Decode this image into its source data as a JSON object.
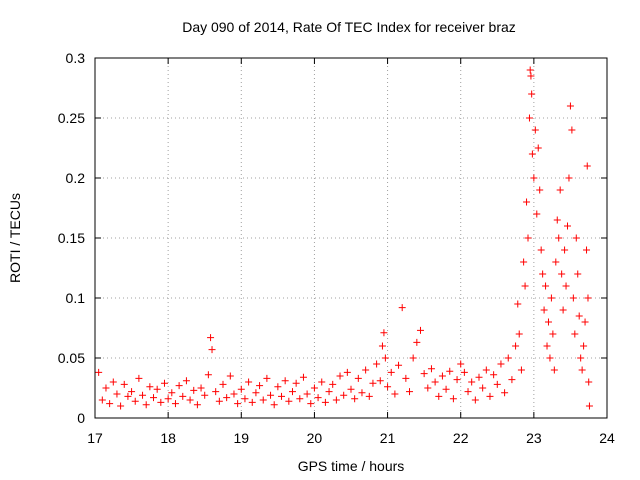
{
  "chart_data": {
    "type": "scatter",
    "title": "Day 090 of 2014, Rate Of TEC Index for receiver braz",
    "xlabel": "GPS time / hours",
    "ylabel": "ROTI / TECUs",
    "xlim": [
      17,
      24
    ],
    "ylim": [
      0,
      0.3
    ],
    "x_ticks": [
      "17",
      "18",
      "19",
      "20",
      "21",
      "22",
      "23",
      "24"
    ],
    "y_ticks": [
      "0",
      "0.05",
      "0.1",
      "0.15",
      "0.2",
      "0.25",
      "0.3"
    ],
    "grid": true,
    "marker": "+",
    "color": "#ff0000",
    "series": [
      {
        "name": "ROTI",
        "points": [
          [
            17.05,
            0.038
          ],
          [
            17.1,
            0.015
          ],
          [
            17.15,
            0.025
          ],
          [
            17.2,
            0.012
          ],
          [
            17.25,
            0.03
          ],
          [
            17.3,
            0.02
          ],
          [
            17.35,
            0.01
          ],
          [
            17.4,
            0.028
          ],
          [
            17.45,
            0.018
          ],
          [
            17.5,
            0.022
          ],
          [
            17.55,
            0.014
          ],
          [
            17.6,
            0.033
          ],
          [
            17.65,
            0.019
          ],
          [
            17.7,
            0.011
          ],
          [
            17.75,
            0.026
          ],
          [
            17.8,
            0.017
          ],
          [
            17.85,
            0.024
          ],
          [
            17.9,
            0.013
          ],
          [
            17.95,
            0.029
          ],
          [
            18.0,
            0.016
          ],
          [
            18.05,
            0.021
          ],
          [
            18.1,
            0.012
          ],
          [
            18.15,
            0.027
          ],
          [
            18.2,
            0.018
          ],
          [
            18.25,
            0.031
          ],
          [
            18.3,
            0.015
          ],
          [
            18.35,
            0.023
          ],
          [
            18.4,
            0.011
          ],
          [
            18.45,
            0.025
          ],
          [
            18.5,
            0.019
          ],
          [
            18.55,
            0.036
          ],
          [
            18.58,
            0.067
          ],
          [
            18.6,
            0.057
          ],
          [
            18.65,
            0.022
          ],
          [
            18.7,
            0.014
          ],
          [
            18.75,
            0.028
          ],
          [
            18.8,
            0.017
          ],
          [
            18.85,
            0.035
          ],
          [
            18.9,
            0.02
          ],
          [
            18.95,
            0.012
          ],
          [
            19.0,
            0.024
          ],
          [
            19.05,
            0.016
          ],
          [
            19.1,
            0.03
          ],
          [
            19.15,
            0.013
          ],
          [
            19.2,
            0.021
          ],
          [
            19.25,
            0.027
          ],
          [
            19.3,
            0.015
          ],
          [
            19.35,
            0.033
          ],
          [
            19.4,
            0.019
          ],
          [
            19.45,
            0.011
          ],
          [
            19.5,
            0.026
          ],
          [
            19.55,
            0.018
          ],
          [
            19.6,
            0.031
          ],
          [
            19.65,
            0.014
          ],
          [
            19.7,
            0.022
          ],
          [
            19.75,
            0.029
          ],
          [
            19.8,
            0.016
          ],
          [
            19.85,
            0.034
          ],
          [
            19.9,
            0.02
          ],
          [
            19.95,
            0.012
          ],
          [
            20.0,
            0.025
          ],
          [
            20.05,
            0.017
          ],
          [
            20.1,
            0.03
          ],
          [
            20.15,
            0.013
          ],
          [
            20.2,
            0.022
          ],
          [
            20.25,
            0.028
          ],
          [
            20.3,
            0.015
          ],
          [
            20.35,
            0.035
          ],
          [
            20.4,
            0.019
          ],
          [
            20.45,
            0.038
          ],
          [
            20.5,
            0.024
          ],
          [
            20.55,
            0.016
          ],
          [
            20.6,
            0.033
          ],
          [
            20.65,
            0.021
          ],
          [
            20.7,
            0.04
          ],
          [
            20.75,
            0.018
          ],
          [
            20.8,
            0.029
          ],
          [
            20.85,
            0.045
          ],
          [
            20.9,
            0.031
          ],
          [
            20.93,
            0.06
          ],
          [
            20.95,
            0.071
          ],
          [
            20.97,
            0.05
          ],
          [
            21.0,
            0.026
          ],
          [
            21.05,
            0.038
          ],
          [
            21.1,
            0.02
          ],
          [
            21.15,
            0.044
          ],
          [
            21.2,
            0.092
          ],
          [
            21.25,
            0.033
          ],
          [
            21.3,
            0.022
          ],
          [
            21.35,
            0.05
          ],
          [
            21.4,
            0.063
          ],
          [
            21.45,
            0.073
          ],
          [
            21.5,
            0.037
          ],
          [
            21.55,
            0.025
          ],
          [
            21.6,
            0.041
          ],
          [
            21.65,
            0.03
          ],
          [
            21.7,
            0.018
          ],
          [
            21.75,
            0.035
          ],
          [
            21.8,
            0.024
          ],
          [
            21.85,
            0.039
          ],
          [
            21.9,
            0.016
          ],
          [
            21.95,
            0.032
          ],
          [
            22.0,
            0.045
          ],
          [
            22.05,
            0.038
          ],
          [
            22.1,
            0.022
          ],
          [
            22.15,
            0.03
          ],
          [
            22.2,
            0.015
          ],
          [
            22.25,
            0.034
          ],
          [
            22.3,
            0.025
          ],
          [
            22.35,
            0.04
          ],
          [
            22.4,
            0.018
          ],
          [
            22.45,
            0.036
          ],
          [
            22.5,
            0.028
          ],
          [
            22.55,
            0.045
          ],
          [
            22.6,
            0.021
          ],
          [
            22.65,
            0.05
          ],
          [
            22.7,
            0.032
          ],
          [
            22.75,
            0.06
          ],
          [
            22.78,
            0.095
          ],
          [
            22.8,
            0.07
          ],
          [
            22.83,
            0.04
          ],
          [
            22.86,
            0.13
          ],
          [
            22.88,
            0.11
          ],
          [
            22.9,
            0.18
          ],
          [
            22.92,
            0.15
          ],
          [
            22.94,
            0.25
          ],
          [
            22.95,
            0.29
          ],
          [
            22.96,
            0.285
          ],
          [
            22.97,
            0.27
          ],
          [
            22.98,
            0.22
          ],
          [
            23.0,
            0.2
          ],
          [
            23.02,
            0.24
          ],
          [
            23.04,
            0.17
          ],
          [
            23.06,
            0.225
          ],
          [
            23.08,
            0.19
          ],
          [
            23.1,
            0.14
          ],
          [
            23.12,
            0.12
          ],
          [
            23.14,
            0.09
          ],
          [
            23.16,
            0.11
          ],
          [
            23.18,
            0.06
          ],
          [
            23.2,
            0.08
          ],
          [
            23.22,
            0.05
          ],
          [
            23.24,
            0.1
          ],
          [
            23.26,
            0.07
          ],
          [
            23.28,
            0.04
          ],
          [
            23.3,
            0.13
          ],
          [
            23.32,
            0.165
          ],
          [
            23.34,
            0.15
          ],
          [
            23.36,
            0.19
          ],
          [
            23.38,
            0.12
          ],
          [
            23.4,
            0.09
          ],
          [
            23.42,
            0.14
          ],
          [
            23.44,
            0.11
          ],
          [
            23.46,
            0.16
          ],
          [
            23.48,
            0.2
          ],
          [
            23.5,
            0.26
          ],
          [
            23.52,
            0.24
          ],
          [
            23.54,
            0.1
          ],
          [
            23.56,
            0.07
          ],
          [
            23.58,
            0.15
          ],
          [
            23.6,
            0.12
          ],
          [
            23.62,
            0.085
          ],
          [
            23.64,
            0.05
          ],
          [
            23.66,
            0.04
          ],
          [
            23.68,
            0.06
          ],
          [
            23.7,
            0.08
          ],
          [
            23.72,
            0.14
          ],
          [
            23.73,
            0.21
          ],
          [
            23.74,
            0.1
          ],
          [
            23.75,
            0.03
          ],
          [
            23.76,
            0.01
          ]
        ]
      }
    ]
  }
}
